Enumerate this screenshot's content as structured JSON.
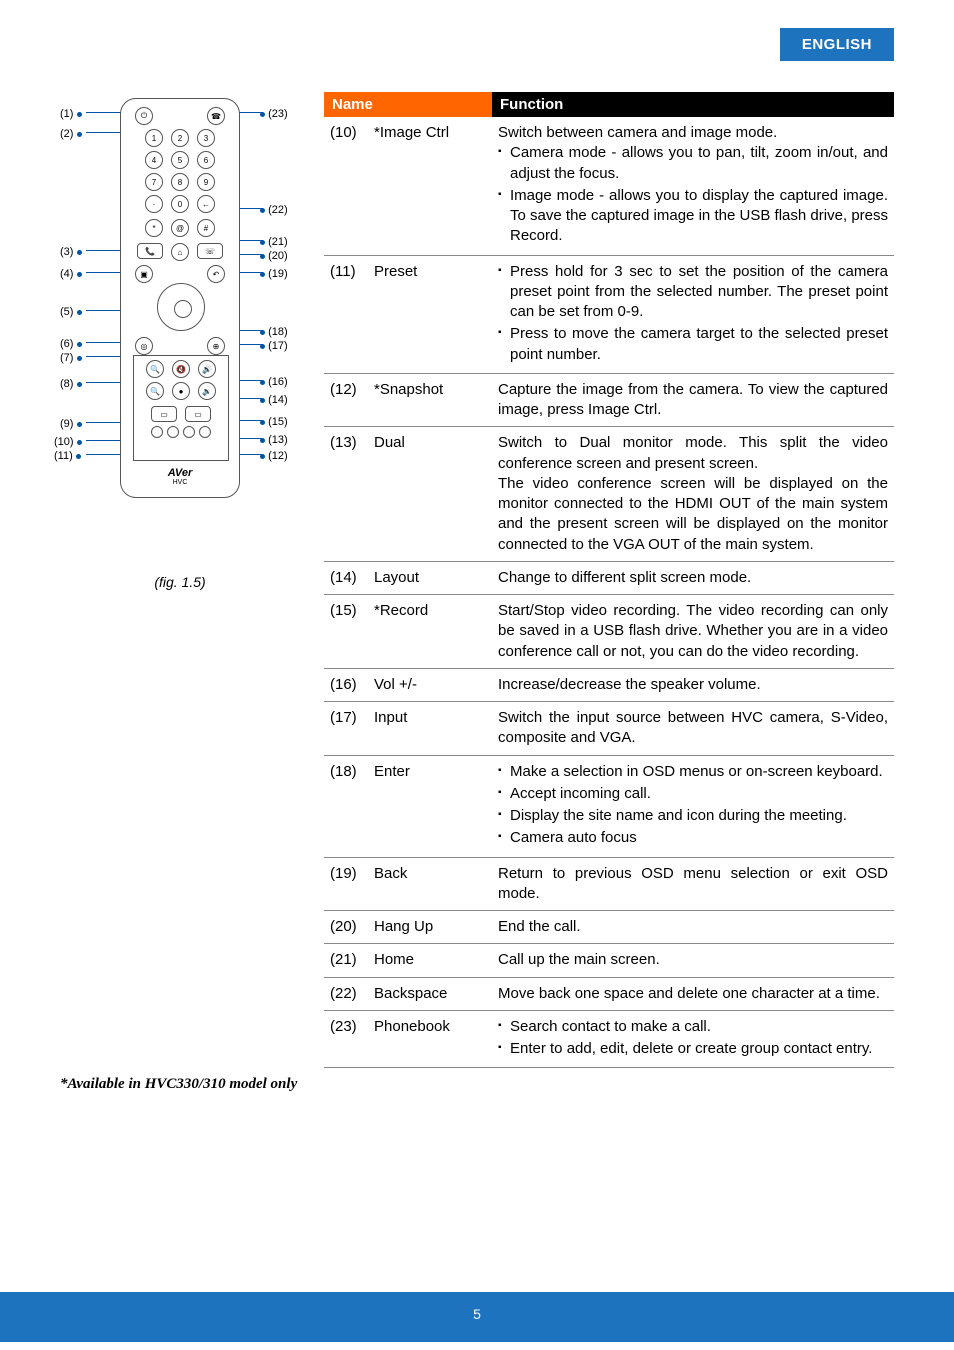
{
  "header_tab": "ENGLISH",
  "table_header": {
    "name": "Name",
    "function": "Function"
  },
  "diagram": {
    "caption": "(fig. 1.5)",
    "left_labels": [
      "(1)",
      "(2)",
      "(3)",
      "(4)",
      "(5)",
      "(6)",
      "(7)",
      "(8)",
      "(9)",
      "(10)",
      "(11)"
    ],
    "right_labels": [
      "(23)",
      "(22)",
      "(21)",
      "(20)",
      "(19)",
      "(18)",
      "(17)",
      "(16)",
      "(14)",
      "(15)",
      "(13)",
      "(12)"
    ],
    "logo": "AVer",
    "logo_sub": "HVC"
  },
  "rows": [
    {
      "num": "(10)",
      "name": "*Image Ctrl",
      "plain": "Switch between camera and image mode.",
      "bullets": [
        "Camera mode - allows you to pan, tilt, zoom in/out, and adjust the focus.",
        "Image mode - allows you to display the captured image. To save the captured image in the USB flash drive, press Record."
      ]
    },
    {
      "num": "(11)",
      "name": "Preset",
      "bullets": [
        "Press hold for 3 sec to set the position of the camera preset point from the selected number. The preset point can be set from 0-9.",
        "Press to move the camera target to the selected preset point number."
      ]
    },
    {
      "num": "(12)",
      "name": "*Snapshot",
      "plain": "Capture the image from the camera. To view the captured image, press Image Ctrl."
    },
    {
      "num": "(13)",
      "name": "Dual",
      "plain": "Switch to Dual monitor mode. This split the video conference screen and present screen.\nThe video conference screen will be displayed on the monitor connected to the HDMI OUT of the main system and the present screen will be displayed on the monitor connected to the VGA OUT of the main system."
    },
    {
      "num": "(14)",
      "name": "Layout",
      "plain": "Change to different split screen mode."
    },
    {
      "num": "(15)",
      "name": "*Record",
      "plain": "Start/Stop video recording. The video recording can only be saved in a USB flash drive. Whether you are in a video conference call or not, you can do the video recording."
    },
    {
      "num": "(16)",
      "name": "Vol +/-",
      "plain": "Increase/decrease the speaker volume."
    },
    {
      "num": "(17)",
      "name": "Input",
      "plain": "Switch the input source between HVC camera, S-Video, composite and VGA."
    },
    {
      "num": "(18)",
      "name": "Enter",
      "bullets": [
        "Make a selection in OSD menus or on-screen keyboard.",
        "Accept incoming call.",
        "Display the site name and icon during the meeting.",
        "Camera auto focus"
      ]
    },
    {
      "num": "(19)",
      "name": "Back",
      "plain": "Return to previous OSD menu selection or exit OSD mode."
    },
    {
      "num": "(20)",
      "name": "Hang Up",
      "plain": "End the call."
    },
    {
      "num": "(21)",
      "name": "Home",
      "plain": "Call up the main screen."
    },
    {
      "num": "(22)",
      "name": "Backspace",
      "plain": "Move back one space and delete one character at a time."
    },
    {
      "num": "(23)",
      "name": "Phonebook",
      "bullets": [
        "Search contact to make a call.",
        "Enter to add, edit, delete or create group contact entry."
      ]
    }
  ],
  "footnote": "*Available in HVC330/310 model only",
  "page_number": "5",
  "colors": {
    "header_blue": "#1e73be",
    "name_orange": "#ff6600",
    "func_black": "#000000"
  }
}
